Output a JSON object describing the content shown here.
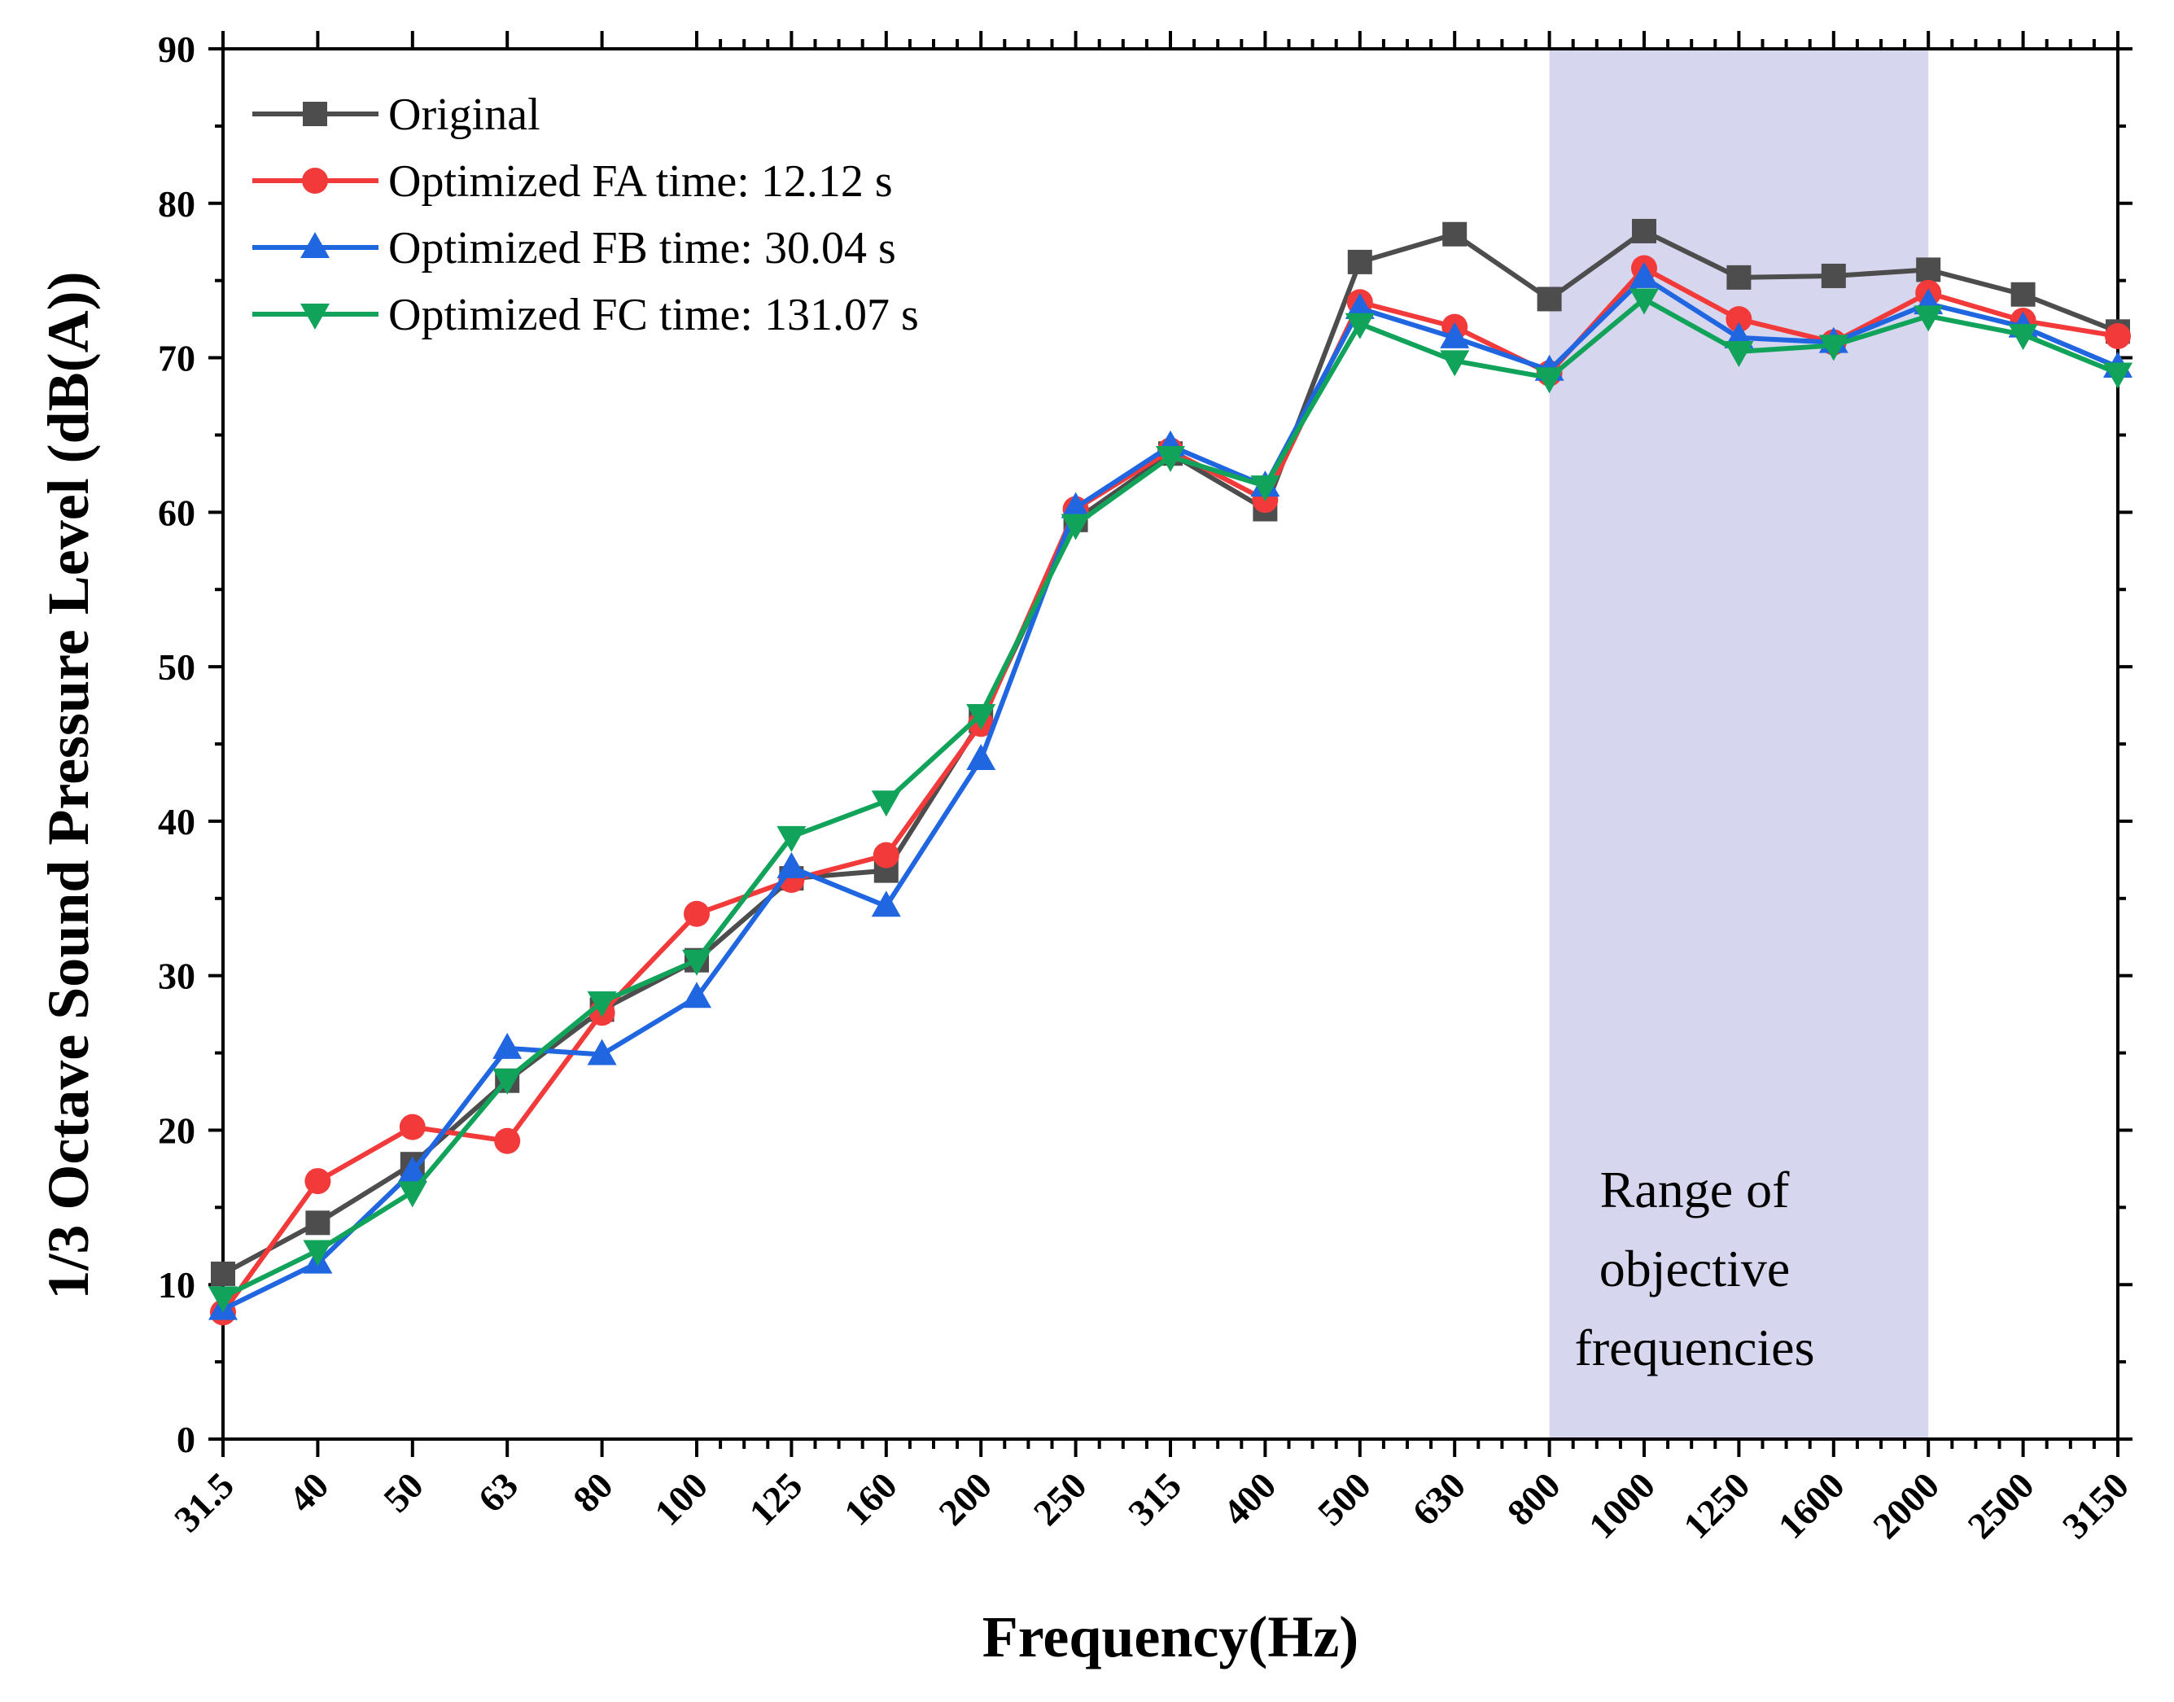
{
  "chart_data": {
    "type": "line",
    "title": "",
    "xlabel": "Frequency(Hz)",
    "ylabel": "1/3 Octave Sound Pressure Level (dB(A))",
    "ylim": [
      0,
      90
    ],
    "yticks": [
      0,
      10,
      20,
      30,
      40,
      50,
      60,
      70,
      80,
      90
    ],
    "grid": false,
    "legend_position": "top-left",
    "categories": [
      "31.5",
      "40",
      "50",
      "63",
      "80",
      "100",
      "125",
      "160",
      "200",
      "250",
      "315",
      "400",
      "500",
      "630",
      "800",
      "1000",
      "1250",
      "1600",
      "2000",
      "2500",
      "3150"
    ],
    "series": [
      {
        "name": "Original",
        "color": "#4d4d4d",
        "marker": "square",
        "values": [
          10.7,
          14.0,
          17.8,
          23.2,
          27.8,
          31.0,
          36.3,
          36.8,
          46.5,
          59.5,
          63.8,
          60.2,
          76.2,
          78.0,
          73.8,
          78.2,
          75.2,
          75.3,
          75.7,
          74.1,
          71.7
        ]
      },
      {
        "name": "Optimized FA time: 12.12  s",
        "color": "#f23a3a",
        "marker": "circle",
        "values": [
          8.2,
          16.7,
          20.2,
          19.3,
          27.6,
          34.0,
          36.2,
          37.8,
          46.3,
          60.2,
          64.0,
          60.8,
          73.6,
          72.0,
          69.0,
          75.8,
          72.5,
          71.0,
          74.2,
          72.4,
          71.4
        ]
      },
      {
        "name": "Optimized FB time: 30.04 s",
        "color": "#1f66e0",
        "marker": "triangle-up",
        "values": [
          8.4,
          11.4,
          17.3,
          25.3,
          24.9,
          28.6,
          37.0,
          34.5,
          44.0,
          60.3,
          64.3,
          61.7,
          73.2,
          71.3,
          69.2,
          75.2,
          71.3,
          71.0,
          73.5,
          72.0,
          69.4
        ]
      },
      {
        "name": "Optimized FC time: 131.07 s",
        "color": "#12a35a",
        "marker": "triangle-down",
        "values": [
          9.2,
          12.2,
          16.0,
          23.3,
          28.3,
          31.0,
          39.0,
          41.3,
          46.9,
          59.2,
          63.6,
          61.7,
          72.2,
          69.8,
          68.7,
          73.8,
          70.4,
          70.8,
          72.7,
          71.5,
          69.0
        ]
      }
    ],
    "shaded_region": {
      "from": "800",
      "to": "2000",
      "color": "#d6d6ee"
    },
    "annotation": {
      "lines": [
        "Range of",
        "objective",
        "frequencies"
      ]
    }
  }
}
